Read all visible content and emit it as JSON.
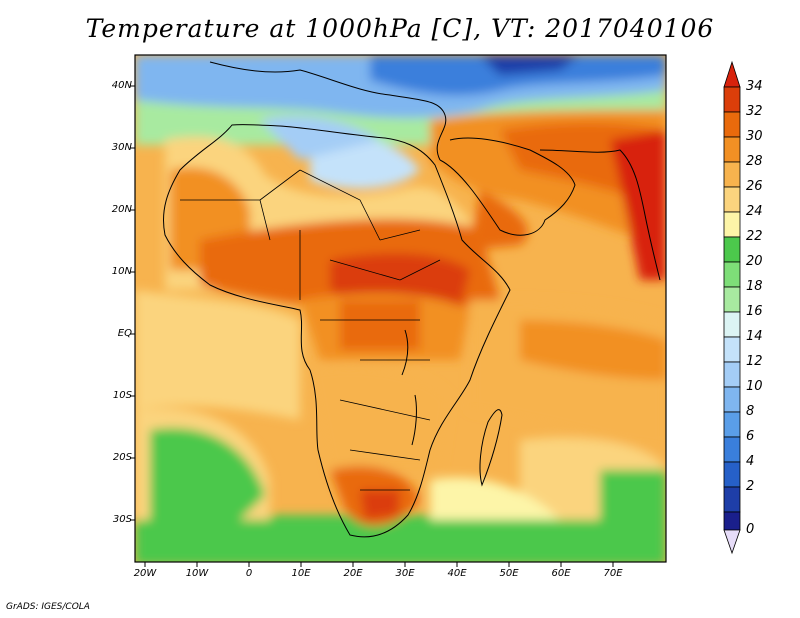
{
  "title": "Temperature at 1000hPa [C], VT: 2017040106",
  "credit": "GrADS: IGES/COLA",
  "map": {
    "lon_range": [
      -22,
      80
    ],
    "lat_range": [
      -37,
      45
    ],
    "lon_ticks": [
      "20W",
      "10W",
      "0",
      "10E",
      "20E",
      "30E",
      "40E",
      "50E",
      "60E",
      "70E"
    ],
    "lat_ticks": [
      "40N",
      "30N",
      "20N",
      "10N",
      "EQ",
      "10S",
      "20S",
      "30S"
    ],
    "variable": "Temperature at 1000hPa",
    "units": "C"
  },
  "colorbar": {
    "labels": [
      "34",
      "32",
      "30",
      "28",
      "26",
      "24",
      "22",
      "20",
      "18",
      "16",
      "14",
      "12",
      "10",
      "8",
      "6",
      "4",
      "2",
      "0"
    ],
    "colors": {
      "c0": "#1a1f8c",
      "c2": "#1e3ea8",
      "c4": "#2660c8",
      "c6": "#3a7fdc",
      "c8": "#5a9ee8",
      "c10": "#7fb6f0",
      "c12": "#a4cdf6",
      "c14": "#c4e2fa",
      "c16": "#dcf4f4",
      "c18": "#a8eaa0",
      "c20": "#7ede78",
      "c22": "#4cc84c",
      "c24": "#fdf5a8",
      "c26": "#fbd47e",
      "c28": "#f7b34e",
      "c30": "#f29024",
      "c32": "#e96a0c",
      "c34": "#db3e0a",
      "over": "#d8220c",
      "under": "#e6dcf8"
    }
  }
}
